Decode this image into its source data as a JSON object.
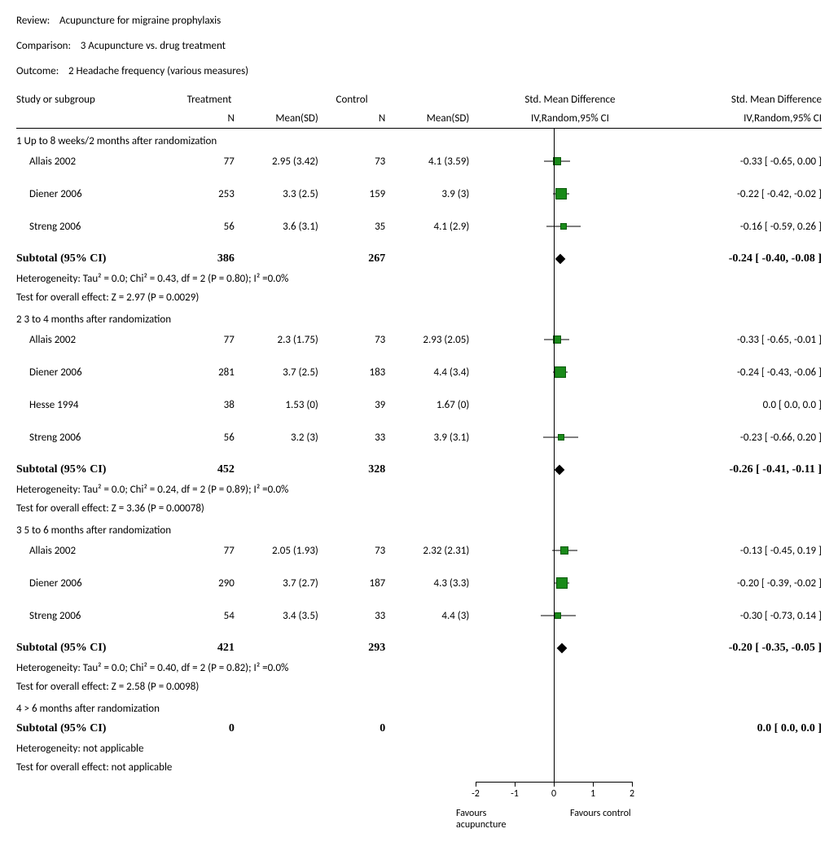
{
  "header": {
    "review_label": "Review:",
    "review_value": "Acupuncture for migraine prophylaxis",
    "comparison_label": "Comparison:",
    "comparison_value": "3 Acupuncture vs. drug treatment",
    "outcome_label": "Outcome:",
    "outcome_value": "2 Headache frequency (various measures)"
  },
  "columns": {
    "study": "Study or subgroup",
    "treatment": "Treatment",
    "control": "Control",
    "n": "N",
    "mean_sd": "Mean(SD)",
    "smd": "Std. Mean Difference",
    "method": "IV,Random,95% CI"
  },
  "plot": {
    "xmin": -2.5,
    "xmax": 2.5,
    "ticks": [
      -2,
      -1,
      0,
      1,
      2
    ],
    "zero": 0,
    "fav_left": "Favours acupuncture",
    "fav_right": "Favours control",
    "marker_color": "#1a8a1a",
    "marker_border": "#0a5a0a",
    "diamond_color": "#000000"
  },
  "groups": [
    {
      "title": "1 Up to 8 weeks/2 months after randomization",
      "rows": [
        {
          "study": "Allais 2002",
          "tN": "77",
          "tMSD": "2.95 (3.42)",
          "cN": "73",
          "cMSD": "4.1 (3.59)",
          "est": -0.33,
          "lo": -0.65,
          "hi": 0.0,
          "w": 8,
          "ci_text": "-0.33 [ -0.65, 0.00 ]"
        },
        {
          "study": "Diener 2006",
          "tN": "253",
          "tMSD": "3.3 (2.5)",
          "cN": "159",
          "cMSD": "3.9 (3)",
          "est": -0.22,
          "lo": -0.42,
          "hi": -0.02,
          "w": 12,
          "ci_text": "-0.22 [ -0.42, -0.02 ]"
        },
        {
          "study": "Streng 2006",
          "tN": "56",
          "tMSD": "3.6 (3.1)",
          "cN": "35",
          "cMSD": "4.1 (2.9)",
          "est": -0.16,
          "lo": -0.59,
          "hi": 0.26,
          "w": 6,
          "ci_text": "-0.16 [ -0.59, 0.26 ]"
        }
      ],
      "subtotal": {
        "label": "Subtotal (95% CI)",
        "tN": "386",
        "cN": "267",
        "est": -0.24,
        "lo": -0.4,
        "hi": -0.08,
        "ci_text": "-0.24 [ -0.40, -0.08 ]"
      },
      "het": "Heterogeneity: Tau² = 0.0; Chi² = 0.43, df = 2 (P = 0.80); I² =0.0%",
      "z": "Test for overall effect: Z = 2.97 (P = 0.0029)"
    },
    {
      "title": "2 3 to 4 months after randomization",
      "rows": [
        {
          "study": "Allais 2002",
          "tN": "77",
          "tMSD": "2.3 (1.75)",
          "cN": "73",
          "cMSD": "2.93 (2.05)",
          "est": -0.33,
          "lo": -0.65,
          "hi": -0.01,
          "w": 8,
          "ci_text": "-0.33 [ -0.65, -0.01 ]"
        },
        {
          "study": "Diener 2006",
          "tN": "281",
          "tMSD": "3.7 (2.5)",
          "cN": "183",
          "cMSD": "4.4 (3.4)",
          "est": -0.24,
          "lo": -0.43,
          "hi": -0.06,
          "w": 12,
          "ci_text": "-0.24 [ -0.43, -0.06 ]"
        },
        {
          "study": "Hesse 1994",
          "tN": "38",
          "tMSD": "1.53 (0)",
          "cN": "39",
          "cMSD": "1.67 (0)",
          "est": 0.0,
          "lo": 0.0,
          "hi": 0.0,
          "w": 0,
          "ci_text": "0.0 [ 0.0, 0.0 ]"
        },
        {
          "study": "Streng 2006",
          "tN": "56",
          "tMSD": "3.2 (3)",
          "cN": "33",
          "cMSD": "3.9 (3.1)",
          "est": -0.23,
          "lo": -0.66,
          "hi": 0.2,
          "w": 6,
          "ci_text": "-0.23 [ -0.66, 0.20 ]"
        }
      ],
      "subtotal": {
        "label": "Subtotal (95% CI)",
        "tN": "452",
        "cN": "328",
        "est": -0.26,
        "lo": -0.41,
        "hi": -0.11,
        "ci_text": "-0.26 [ -0.41, -0.11 ]"
      },
      "het": "Heterogeneity: Tau² = 0.0; Chi² = 0.24, df = 2 (P = 0.89); I² =0.0%",
      "z": "Test for overall effect: Z = 3.36 (P = 0.00078)"
    },
    {
      "title": "3 5 to 6 months after randomization",
      "rows": [
        {
          "study": "Allais 2002",
          "tN": "77",
          "tMSD": "2.05 (1.93)",
          "cN": "73",
          "cMSD": "2.32 (2.31)",
          "est": -0.13,
          "lo": -0.45,
          "hi": 0.19,
          "w": 8,
          "ci_text": "-0.13 [ -0.45, 0.19 ]"
        },
        {
          "study": "Diener 2006",
          "tN": "290",
          "tMSD": "3.7 (2.7)",
          "cN": "187",
          "cMSD": "4.3 (3.3)",
          "est": -0.2,
          "lo": -0.39,
          "hi": -0.02,
          "w": 12,
          "ci_text": "-0.20 [ -0.39, -0.02 ]"
        },
        {
          "study": "Streng 2006",
          "tN": "54",
          "tMSD": "3.4 (3.5)",
          "cN": "33",
          "cMSD": "4.4 (3)",
          "est": -0.3,
          "lo": -0.73,
          "hi": 0.14,
          "w": 6,
          "ci_text": "-0.30 [ -0.73, 0.14 ]"
        }
      ],
      "subtotal": {
        "label": "Subtotal (95% CI)",
        "tN": "421",
        "cN": "293",
        "est": -0.2,
        "lo": -0.35,
        "hi": -0.05,
        "ci_text": "-0.20 [ -0.35, -0.05 ]"
      },
      "het": "Heterogeneity: Tau² = 0.0; Chi² = 0.40, df = 2 (P = 0.82); I² =0.0%",
      "z": "Test for overall effect: Z = 2.58 (P = 0.0098)"
    },
    {
      "title": "4 > 6 months after randomization",
      "rows": [],
      "subtotal": {
        "label": "Subtotal (95% CI)",
        "tN": "0",
        "cN": "0",
        "est": 0.0,
        "lo": 0.0,
        "hi": 0.0,
        "ci_text": "0.0 [ 0.0, 0.0 ]",
        "no_plot": true
      },
      "het": "Heterogeneity: not applicable",
      "z": "Test for overall effect: not applicable"
    }
  ],
  "col_widths": {
    "study": 200,
    "tN": 60,
    "tMSD": 100,
    "cN": 80,
    "cMSD": 100,
    "plot": 240,
    "ci": 180
  }
}
